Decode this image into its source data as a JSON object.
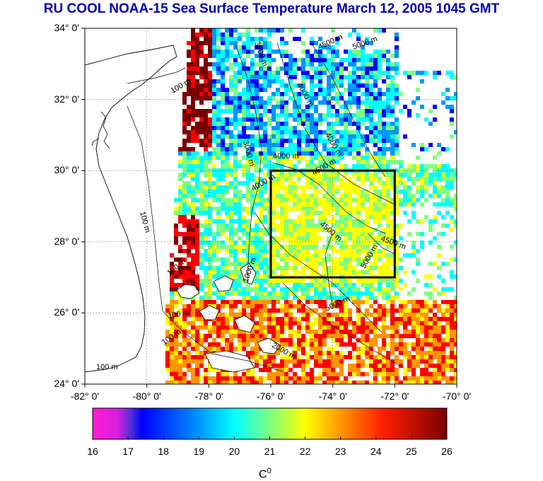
{
  "title": "RU COOL  NOAA-15 Sea Surface Temperature March 12, 2005 1045 GMT",
  "map": {
    "lat_range": [
      24,
      34
    ],
    "lon_range": [
      -82,
      -70
    ],
    "lat_labels": [
      "34° 0'",
      "32° 0'",
      "30° 0'",
      "28° 0'",
      "26° 0'",
      "24° 0'"
    ],
    "lon_labels": [
      "-82° 0'",
      "-80° 0'",
      "-78° 0'",
      "-76° 0'",
      "-74° 0'",
      "-72° 0'",
      "-70° 0'"
    ],
    "grid": "dotted",
    "study_box": {
      "lon": [
        -76,
        -72
      ],
      "lat": [
        27,
        30
      ]
    },
    "contour_labels": [
      "100 m",
      "100 m",
      "100 m",
      "100 m",
      "100 m",
      "100 m",
      "3000 m",
      "3000 m",
      "4000 m",
      "4000 m",
      "4000 m",
      "4500 m",
      "4500 m",
      "4500 m",
      "4500 m",
      "5000 m",
      "5000 m",
      "5000 m",
      "4000 m",
      "1000 m",
      "2000 m"
    ]
  },
  "colorbar": {
    "ticks": [
      "16",
      "17",
      "18",
      "19",
      "20",
      "21",
      "22",
      "23",
      "24",
      "25",
      "26"
    ],
    "range": [
      16,
      26
    ],
    "unit": "C",
    "unit_sup": "0",
    "colors": [
      "#ff1ed2",
      "#0000ff",
      "#0096ff",
      "#00ffff",
      "#7fff7f",
      "#ffff00",
      "#ff9600",
      "#ff0000",
      "#7a0000"
    ]
  }
}
